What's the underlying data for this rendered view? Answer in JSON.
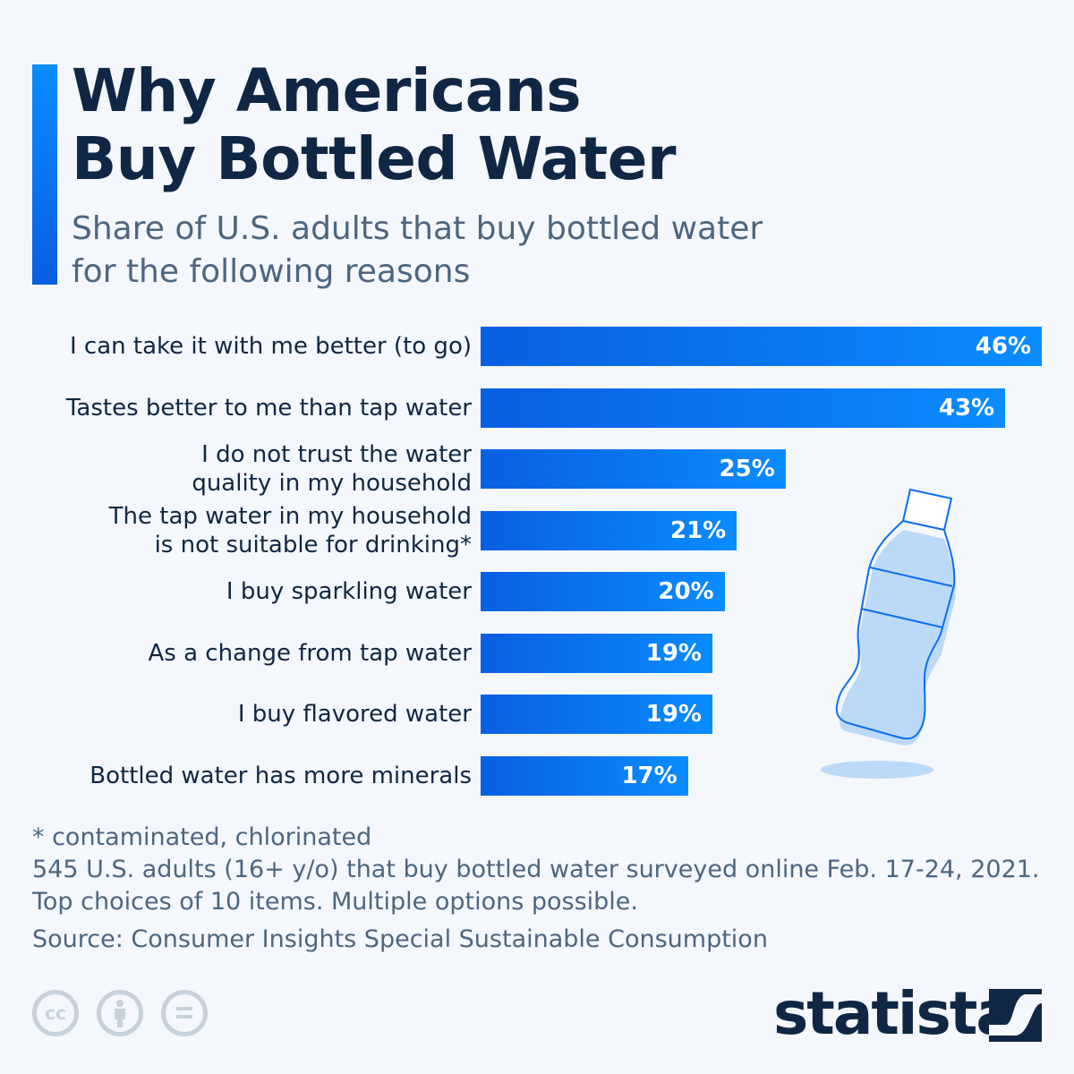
{
  "header": {
    "title_line1": "Why Americans",
    "title_line2": "Buy Bottled Water",
    "subtitle": "Share of U.S. adults that buy bottled water for the following reasons"
  },
  "chart_data": {
    "type": "bar",
    "orientation": "horizontal",
    "title": "Why Americans Buy Bottled Water",
    "subtitle": "Share of U.S. adults that buy bottled water for the following reasons",
    "categories": [
      "I can take it with me better (to go)",
      "Tastes better to me than tap water",
      "I do not trust the water quality in my household",
      "The tap water in my household is not suitable for drinking*",
      "I buy sparkling water",
      "As a change from tap water",
      "I buy flavored water",
      "Bottled water has more minerals"
    ],
    "category_lines": [
      [
        "I can take it with me better (to go)"
      ],
      [
        "Tastes better to me than tap water"
      ],
      [
        "I do not trust the water",
        "quality in my household"
      ],
      [
        "The tap water in my household",
        "is not suitable for drinking*"
      ],
      [
        "I buy sparkling water"
      ],
      [
        "As a change from tap water"
      ],
      [
        "I buy flavored water"
      ],
      [
        "Bottled water has more minerals"
      ]
    ],
    "values": [
      46,
      43,
      25,
      21,
      20,
      19,
      19,
      17
    ],
    "data_labels": [
      "46%",
      "43%",
      "25%",
      "21%",
      "20%",
      "19%",
      "19%",
      "17%"
    ],
    "unit": "%",
    "grid": false,
    "bar_color": "#0a6fee"
  },
  "footer": {
    "footnote": "* contaminated, chlorinated",
    "survey": "545 U.S. adults (16+ y/o) that buy bottled water surveyed online Feb. 17-24, 2021.",
    "notes": "Top choices of 10 items. Multiple options possible.",
    "source": "Source: Consumer Insights Special Sustainable Consumption",
    "license_icons": [
      "creative-commons-icon",
      "attribution-icon",
      "no-derivatives-icon"
    ],
    "cc_text": "cc",
    "brand": "statista"
  }
}
